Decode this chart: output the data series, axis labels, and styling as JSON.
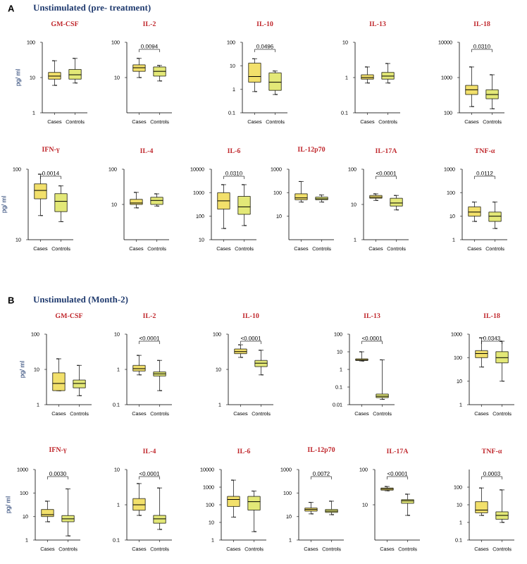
{
  "chart_data": [
    {
      "type": "box",
      "title": "GM-CSF",
      "subtitle": "Unstimulated (pre- treatment)",
      "annotations": [
        "A"
      ],
      "ylabel": "pg/ ml",
      "categories": [
        "Cases",
        "Controls"
      ],
      "log": true,
      "ylim": [
        1,
        100
      ],
      "yticks": [
        1,
        10,
        100
      ],
      "colors": [
        "#f2e06b",
        "#e3e877"
      ],
      "boxes": [
        {
          "low": 6,
          "q1": 9,
          "median": 11,
          "q3": 14,
          "high": 30
        },
        {
          "low": 7,
          "q1": 9,
          "median": 12,
          "q3": 17,
          "high": 35
        }
      ]
    },
    {
      "type": "box",
      "title": "IL-2",
      "annotations": [
        "0.0094"
      ],
      "categories": [
        "Cases",
        "Controls"
      ],
      "log": true,
      "ylim": [
        1,
        100
      ],
      "yticks": [
        10,
        100
      ],
      "colors": [
        "#f2e06b",
        "#e3e877"
      ],
      "boxes": [
        {
          "low": 10,
          "q1": 15,
          "median": 19,
          "q3": 23,
          "high": 35
        },
        {
          "low": 8,
          "q1": 11,
          "median": 15,
          "q3": 20,
          "high": 22
        }
      ]
    },
    {
      "type": "box",
      "title": "IL-10",
      "annotations": [
        "0.0496"
      ],
      "categories": [
        "Cases",
        "Controls"
      ],
      "log": true,
      "ylim": [
        0.1,
        100
      ],
      "yticks": [
        0.1,
        1,
        10,
        100
      ],
      "colors": [
        "#f2e06b",
        "#e3e877"
      ],
      "boxes": [
        {
          "low": 0.8,
          "q1": 2,
          "median": 3.5,
          "q3": 13,
          "high": 20
        },
        {
          "low": 0.6,
          "q1": 0.9,
          "median": 2,
          "q3": 5,
          "high": 6
        }
      ]
    },
    {
      "type": "box",
      "title": "IL-13",
      "categories": [
        "Cases",
        "Controls"
      ],
      "log": true,
      "ylim": [
        0.1,
        10
      ],
      "yticks": [
        0.1,
        1,
        10
      ],
      "colors": [
        "#f2e06b",
        "#e3e877"
      ],
      "boxes": [
        {
          "low": 0.7,
          "q1": 0.9,
          "median": 1,
          "q3": 1.2,
          "high": 2
        },
        {
          "low": 0.7,
          "q1": 0.9,
          "median": 1.1,
          "q3": 1.4,
          "high": 2.5
        }
      ]
    },
    {
      "type": "box",
      "title": "IL-18",
      "annotations": [
        "0.0310"
      ],
      "categories": [
        "Cases",
        "Controls"
      ],
      "log": true,
      "ylim": [
        100,
        10000
      ],
      "yticks": [
        100,
        1000,
        10000
      ],
      "colors": [
        "#f2e06b",
        "#e3e877"
      ],
      "boxes": [
        {
          "low": 150,
          "q1": 330,
          "median": 450,
          "q3": 600,
          "high": 2000
        },
        {
          "low": 130,
          "q1": 250,
          "median": 330,
          "q3": 450,
          "high": 1200
        }
      ]
    },
    {
      "type": "box",
      "title": "IFN-γ",
      "ylabel": "pg/ ml",
      "annotations": [
        "0.0014"
      ],
      "categories": [
        "Cases",
        "Controls"
      ],
      "log": true,
      "ylim": [
        10,
        100
      ],
      "yticks": [
        10,
        100
      ],
      "colors": [
        "#f2e06b",
        "#e3e877"
      ],
      "boxes": [
        {
          "low": 22,
          "q1": 38,
          "median": 50,
          "q3": 62,
          "high": 85
        },
        {
          "low": 18,
          "q1": 25,
          "median": 35,
          "q3": 45,
          "high": 58
        }
      ]
    },
    {
      "type": "box",
      "title": "IL-4",
      "categories": [
        "Cases",
        "Controls"
      ],
      "log": true,
      "ylim": [
        1,
        100
      ],
      "yticks": [
        10,
        100
      ],
      "colors": [
        "#f2e06b",
        "#e3e877"
      ],
      "boxes": [
        {
          "low": 8,
          "q1": 10,
          "median": 11,
          "q3": 14,
          "high": 22
        },
        {
          "low": 9,
          "q1": 10,
          "median": 13,
          "q3": 16,
          "high": 20
        }
      ]
    },
    {
      "type": "box",
      "title": "IL-6",
      "annotations": [
        "0.0310"
      ],
      "categories": [
        "Cases",
        "Controls"
      ],
      "log": true,
      "ylim": [
        10,
        10000
      ],
      "yticks": [
        10,
        100,
        1000,
        10000
      ],
      "colors": [
        "#f2e06b",
        "#e3e877"
      ],
      "boxes": [
        {
          "low": 30,
          "q1": 200,
          "median": 450,
          "q3": 1000,
          "high": 2200
        },
        {
          "low": 40,
          "q1": 120,
          "median": 250,
          "q3": 700,
          "high": 2200
        }
      ]
    },
    {
      "type": "box",
      "title": "IL-12p70",
      "categories": [
        "Cases",
        "Controls"
      ],
      "log": true,
      "ylim": [
        1,
        1000
      ],
      "yticks": [
        10,
        100,
        1000
      ],
      "colors": [
        "#f2e06b",
        "#e3e877"
      ],
      "boxes": [
        {
          "low": 40,
          "q1": 50,
          "median": 60,
          "q3": 90,
          "high": 300
        },
        {
          "low": 40,
          "q1": 50,
          "median": 55,
          "q3": 65,
          "high": 80
        }
      ]
    },
    {
      "type": "box",
      "title": "IL-17A",
      "annotations": [
        "<0.0001"
      ],
      "categories": [
        "Cases",
        "Controls"
      ],
      "log": true,
      "ylim": [
        1,
        100
      ],
      "yticks": [
        1,
        10,
        100
      ],
      "colors": [
        "#f2e06b",
        "#e3e877"
      ],
      "boxes": [
        {
          "low": 13,
          "q1": 15,
          "median": 16,
          "q3": 18,
          "high": 20
        },
        {
          "low": 7,
          "q1": 9,
          "median": 11,
          "q3": 15,
          "high": 18
        }
      ]
    },
    {
      "type": "box",
      "title": "TNF-α",
      "annotations": [
        "0.0112"
      ],
      "categories": [
        "Cases",
        "Controls"
      ],
      "log": true,
      "ylim": [
        1,
        1000
      ],
      "yticks": [
        1,
        10,
        100,
        1000
      ],
      "colors": [
        "#f2e06b",
        "#e3e877"
      ],
      "boxes": [
        {
          "low": 6,
          "q1": 10,
          "median": 15,
          "q3": 25,
          "high": 40
        },
        {
          "low": 3,
          "q1": 6,
          "median": 10,
          "q3": 15,
          "high": 40
        }
      ]
    },
    {
      "type": "box",
      "title": "GM-CSF",
      "subtitle": "Unstimulated (Month-2)",
      "annotations": [
        "B"
      ],
      "ylabel": "pg/ ml",
      "categories": [
        "Cases",
        "Controls"
      ],
      "log": true,
      "ylim": [
        1,
        100
      ],
      "yticks": [
        1,
        10,
        100
      ],
      "colors": [
        "#f2e06b",
        "#e3e877"
      ],
      "boxes": [
        {
          "low": 2.5,
          "q1": 2.5,
          "median": 4,
          "q3": 8,
          "high": 20
        },
        {
          "low": 1.8,
          "q1": 3,
          "median": 4,
          "q3": 5,
          "high": 13
        }
      ]
    },
    {
      "type": "box",
      "title": "IL-2",
      "annotations": [
        "<0.0001"
      ],
      "categories": [
        "Cases",
        "Controls"
      ],
      "log": true,
      "ylim": [
        0.1,
        10
      ],
      "yticks": [
        0.1,
        1,
        10
      ],
      "colors": [
        "#f2e06b",
        "#e3e877"
      ],
      "boxes": [
        {
          "low": 0.7,
          "q1": 0.9,
          "median": 1.05,
          "q3": 1.3,
          "high": 2.5
        },
        {
          "low": 0.25,
          "q1": 0.65,
          "median": 0.75,
          "q3": 0.85,
          "high": 1.8
        }
      ]
    },
    {
      "type": "box",
      "title": "IL-10",
      "annotations": [
        "<0.0001"
      ],
      "categories": [
        "Cases",
        "Controls"
      ],
      "log": true,
      "ylim": [
        1,
        100
      ],
      "yticks": [
        1,
        10,
        100
      ],
      "colors": [
        "#f2e06b",
        "#e3e877"
      ],
      "boxes": [
        {
          "low": 22,
          "q1": 28,
          "median": 32,
          "q3": 38,
          "high": 50
        },
        {
          "low": 7,
          "q1": 12,
          "median": 15,
          "q3": 18,
          "high": 35
        }
      ]
    },
    {
      "type": "box",
      "title": "IL-13",
      "annotations": [
        "<0.0001"
      ],
      "categories": [
        "Cases",
        "Controls"
      ],
      "log": true,
      "ylim": [
        0.01,
        100
      ],
      "yticks": [
        0.01,
        0.1,
        1,
        10,
        100
      ],
      "colors": [
        "#f2e06b",
        "#e3e877"
      ],
      "boxes": [
        {
          "low": 3,
          "q1": 3.2,
          "median": 3.5,
          "q3": 4,
          "high": 10
        },
        {
          "low": 0.02,
          "q1": 0.025,
          "median": 0.03,
          "q3": 0.04,
          "high": 3.5
        }
      ]
    },
    {
      "type": "box",
      "title": "IL-18",
      "annotations": [
        "0.0343"
      ],
      "categories": [
        "Cases",
        "Controls"
      ],
      "log": true,
      "ylim": [
        1,
        1000
      ],
      "yticks": [
        1,
        10,
        100,
        1000
      ],
      "colors": [
        "#f2e06b",
        "#e3e877"
      ],
      "boxes": [
        {
          "low": 40,
          "q1": 100,
          "median": 150,
          "q3": 200,
          "high": 700
        },
        {
          "low": 10,
          "q1": 60,
          "median": 100,
          "q3": 180,
          "high": 500
        }
      ]
    },
    {
      "type": "box",
      "title": "IFN-γ",
      "ylabel": "pg/ ml",
      "annotations": [
        "0.0030"
      ],
      "categories": [
        "Cases",
        "Controls"
      ],
      "log": true,
      "ylim": [
        1,
        1000
      ],
      "yticks": [
        1,
        10,
        100,
        1000
      ],
      "colors": [
        "#f2e06b",
        "#e3e877"
      ],
      "boxes": [
        {
          "low": 6,
          "q1": 10,
          "median": 12,
          "q3": 20,
          "high": 45
        },
        {
          "low": 1.5,
          "q1": 6,
          "median": 8,
          "q3": 11,
          "high": 150
        }
      ]
    },
    {
      "type": "box",
      "title": "IL-4",
      "annotations": [
        "<0.0001"
      ],
      "categories": [
        "Cases",
        "Controls"
      ],
      "log": true,
      "ylim": [
        0.1,
        10
      ],
      "yticks": [
        0.1,
        1,
        10
      ],
      "colors": [
        "#f2e06b",
        "#e3e877"
      ],
      "boxes": [
        {
          "low": 0.5,
          "q1": 0.7,
          "median": 1,
          "q3": 1.5,
          "high": 4
        },
        {
          "low": 0.2,
          "q1": 0.3,
          "median": 0.4,
          "q3": 0.5,
          "high": 3
        }
      ]
    },
    {
      "type": "box",
      "title": "IL-6",
      "categories": [
        "Cases",
        "Controls"
      ],
      "log": true,
      "ylim": [
        1,
        10000
      ],
      "yticks": [
        1,
        10,
        100,
        1000,
        10000
      ],
      "colors": [
        "#f2e06b",
        "#e3e877"
      ],
      "boxes": [
        {
          "low": 20,
          "q1": 80,
          "median": 200,
          "q3": 300,
          "high": 2500
        },
        {
          "low": 3,
          "q1": 50,
          "median": 150,
          "q3": 300,
          "high": 600
        }
      ]
    },
    {
      "type": "box",
      "title": "IL-12p70",
      "annotations": [
        "0.0072"
      ],
      "categories": [
        "Cases",
        "Controls"
      ],
      "log": true,
      "ylim": [
        1,
        1000
      ],
      "yticks": [
        1,
        10,
        100,
        1000
      ],
      "colors": [
        "#f2e06b",
        "#e3e877"
      ],
      "boxes": [
        {
          "low": 13,
          "q1": 17,
          "median": 20,
          "q3": 23,
          "high": 40
        },
        {
          "low": 12,
          "q1": 15,
          "median": 17,
          "q3": 20,
          "high": 45
        }
      ]
    },
    {
      "type": "box",
      "title": "IL-17A",
      "annotations": [
        "<0.0001"
      ],
      "categories": [
        "Cases",
        "Controls"
      ],
      "log": true,
      "ylim": [
        1,
        100
      ],
      "yticks": [
        10,
        100
      ],
      "colors": [
        "#f2e06b",
        "#e3e877"
      ],
      "boxes": [
        {
          "low": 25,
          "q1": 26,
          "median": 28,
          "q3": 30,
          "high": 33
        },
        {
          "low": 5,
          "q1": 11,
          "median": 13,
          "q3": 14,
          "high": 20
        }
      ]
    },
    {
      "type": "box",
      "title": "TNF-α",
      "annotations": [
        "0.0003"
      ],
      "categories": [
        "Cases",
        "Controls"
      ],
      "log": true,
      "ylim": [
        0.1,
        1000
      ],
      "yticks": [
        0.1,
        1,
        10,
        100
      ],
      "colors": [
        "#f2e06b",
        "#e3e877"
      ],
      "boxes": [
        {
          "low": 2.5,
          "q1": 3.5,
          "median": 5,
          "q3": 15,
          "high": 90
        },
        {
          "low": 1,
          "q1": 1.5,
          "median": 2.5,
          "q3": 4,
          "high": 70
        }
      ]
    }
  ]
}
